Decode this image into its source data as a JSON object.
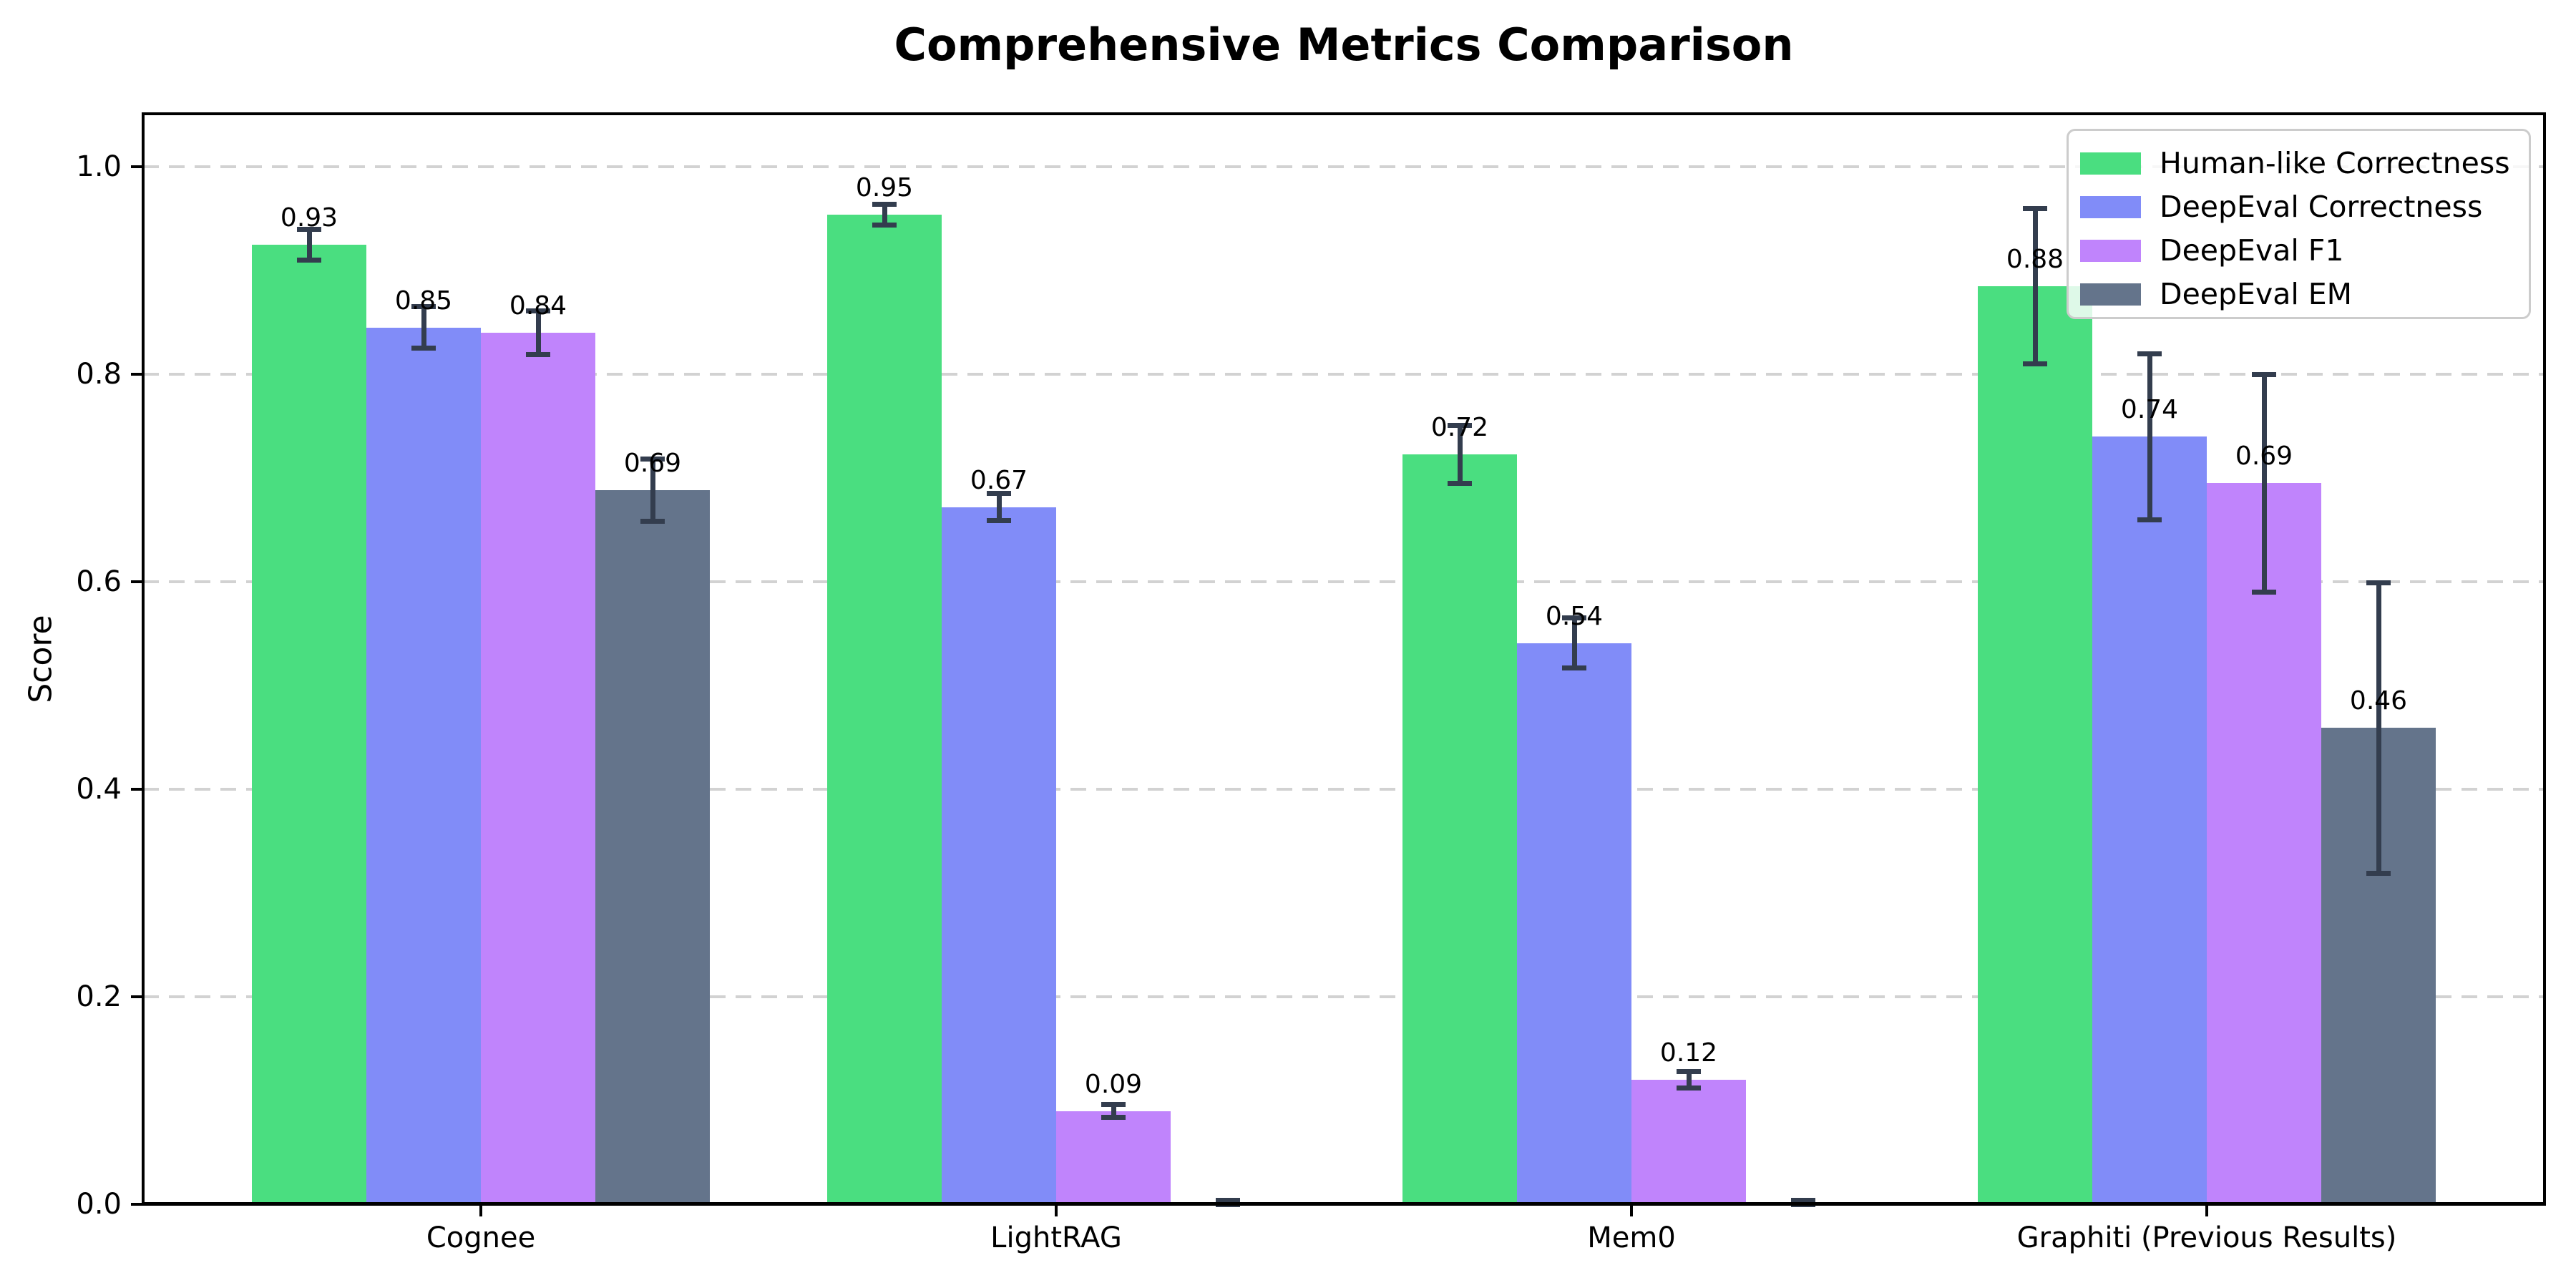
{
  "title": "Comprehensive Metrics Comparison",
  "chart_data": {
    "type": "bar",
    "title": "Comprehensive Metrics Comparison",
    "xlabel": "",
    "ylabel": "Score",
    "ylim": [
      0.0,
      1.05
    ],
    "yticks": [
      0.0,
      0.2,
      0.4,
      0.6,
      0.8,
      1.0
    ],
    "ytick_labels": [
      "0.0",
      "0.2",
      "0.4",
      "0.6",
      "0.8",
      "1.0"
    ],
    "grid": "horizontal-dashed",
    "grid_color": "#d2d2d2",
    "axis_color": "#000000",
    "error_bar_color": "#333d4e",
    "legend_position": "upper-right",
    "categories": [
      "Cognee",
      "LightRAG",
      "Mem0",
      "Graphiti (Previous Results)"
    ],
    "series": [
      {
        "name": "Human-like Correctness",
        "color": "#4ade80",
        "values": [
          0.925,
          0.954,
          0.723,
          0.885
        ],
        "errors": [
          0.015,
          0.01,
          0.028,
          0.075
        ],
        "labels": [
          "0.93",
          "0.95",
          "0.72",
          "0.88"
        ]
      },
      {
        "name": "DeepEval Correctness",
        "color": "#818cf8",
        "values": [
          0.845,
          0.672,
          0.541,
          0.74
        ],
        "errors": [
          0.02,
          0.013,
          0.024,
          0.08
        ],
        "labels": [
          "0.85",
          "0.67",
          "0.54",
          "0.74"
        ]
      },
      {
        "name": "DeepEval F1",
        "color": "#c084fc",
        "values": [
          0.84,
          0.09,
          0.12,
          0.695
        ],
        "errors": [
          0.021,
          0.006,
          0.008,
          0.105
        ],
        "labels": [
          "0.84",
          "0.09",
          "0.12",
          "0.69"
        ]
      },
      {
        "name": "DeepEval EM",
        "color": "#64748b",
        "values": [
          0.688,
          0.002,
          0.002,
          0.459
        ],
        "errors": [
          0.03,
          0.002,
          0.002,
          0.14
        ],
        "labels": [
          "0.69",
          null,
          null,
          "0.46"
        ]
      }
    ]
  }
}
